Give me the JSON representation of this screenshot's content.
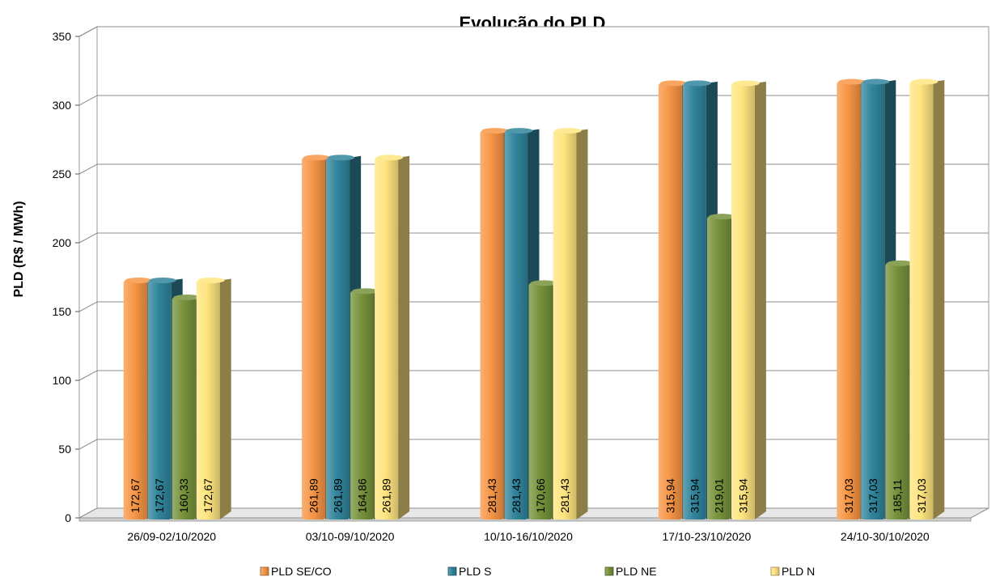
{
  "chart_data": {
    "type": "bar",
    "title": "Evolução do PLD",
    "xlabel": "",
    "ylabel": "PLD (R$ / MWh)",
    "ylim": [
      0,
      350
    ],
    "yticks": [
      "0",
      "50",
      "100",
      "150",
      "200",
      "250",
      "300",
      "350"
    ],
    "grid": true,
    "legend_position": "bottom",
    "categories": [
      "26/09-02/10/2020",
      "03/10-09/10/2020",
      "10/10-16/10/2020",
      "17/10-23/10/2020",
      "24/10-30/10/2020"
    ],
    "series": [
      {
        "name": "PLD SE/CO",
        "values": [
          172.67,
          261.89,
          281.43,
          315.94,
          317.03
        ],
        "labels": [
          "172,67",
          "261,89",
          "281,43",
          "315,94",
          "317,03"
        ],
        "color": "#F79646"
      },
      {
        "name": "PLD S",
        "values": [
          172.67,
          261.89,
          281.43,
          315.94,
          317.03
        ],
        "labels": [
          "172,67",
          "261,89",
          "281,43",
          "315,94",
          "317,03"
        ],
        "color": "#31859C"
      },
      {
        "name": "PLD NE",
        "values": [
          160.33,
          164.86,
          170.66,
          219.01,
          185.11
        ],
        "labels": [
          "160,33",
          "164,86",
          "170,66",
          "219,01",
          "185,11"
        ],
        "color": "#77933C"
      },
      {
        "name": "PLD N",
        "values": [
          172.67,
          261.89,
          281.43,
          315.94,
          317.03
        ],
        "labels": [
          "172,67",
          "261,89",
          "281,43",
          "315,94",
          "317,03"
        ],
        "color": "#FFE57F"
      }
    ]
  }
}
